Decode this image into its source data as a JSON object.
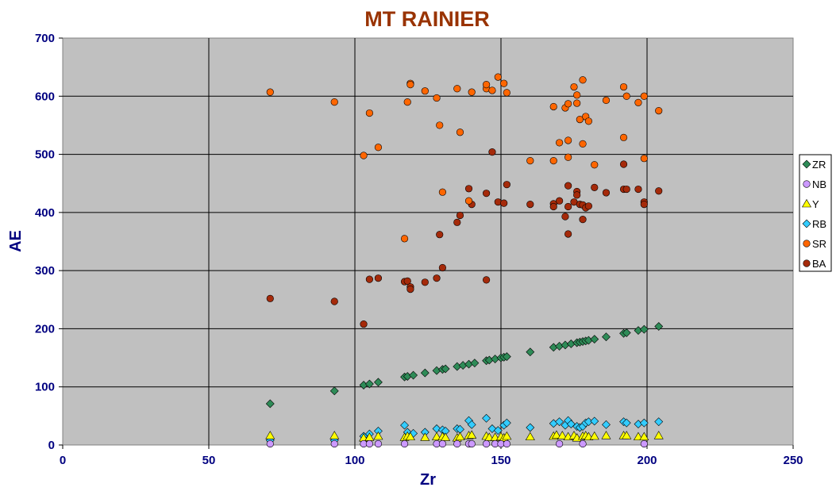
{
  "chart_data": {
    "type": "scatter",
    "title": "MT RAINIER",
    "xlabel": "Zr",
    "ylabel": "AE",
    "xlim": [
      0,
      250
    ],
    "ylim": [
      0,
      700
    ],
    "x_ticks": [
      "0",
      "50",
      "100",
      "150",
      "200",
      "250"
    ],
    "y_ticks": [
      "0",
      "100",
      "200",
      "300",
      "400",
      "500",
      "600",
      "700"
    ],
    "grid": true,
    "legend_position": "right",
    "colors": {
      "title": "#993300",
      "axis_text": "#000080",
      "plot_background": "#c0c0c0",
      "gridline": "#000000"
    },
    "series": [
      {
        "name": "ZR",
        "marker": "diamond",
        "color": "#2e8b57",
        "points": [
          [
            71,
            71
          ],
          [
            93,
            93
          ],
          [
            103,
            103
          ],
          [
            105,
            105
          ],
          [
            108,
            108
          ],
          [
            117,
            117
          ],
          [
            118,
            118
          ],
          [
            120,
            120
          ],
          [
            124,
            124
          ],
          [
            128,
            128
          ],
          [
            130,
            130
          ],
          [
            131,
            131
          ],
          [
            135,
            135
          ],
          [
            137,
            137
          ],
          [
            139,
            139
          ],
          [
            141,
            141
          ],
          [
            145,
            145
          ],
          [
            146,
            146
          ],
          [
            148,
            148
          ],
          [
            150,
            150
          ],
          [
            151,
            151
          ],
          [
            152,
            152
          ],
          [
            160,
            160
          ],
          [
            168,
            168
          ],
          [
            170,
            170
          ],
          [
            172,
            172
          ],
          [
            174,
            174
          ],
          [
            176,
            176
          ],
          [
            177,
            177
          ],
          [
            178,
            178
          ],
          [
            179,
            179
          ],
          [
            180,
            180
          ],
          [
            182,
            182
          ],
          [
            186,
            186
          ],
          [
            192,
            192
          ],
          [
            193,
            193
          ],
          [
            197,
            197
          ],
          [
            199,
            199
          ],
          [
            204,
            204
          ]
        ]
      },
      {
        "name": "NB",
        "marker": "circle",
        "color": "#cc99ff",
        "points": [
          [
            71,
            2
          ],
          [
            93,
            2
          ],
          [
            103,
            2
          ],
          [
            105,
            2
          ],
          [
            108,
            2
          ],
          [
            117,
            2
          ],
          [
            128,
            2
          ],
          [
            130,
            2
          ],
          [
            135,
            2
          ],
          [
            139,
            2
          ],
          [
            140,
            2
          ],
          [
            145,
            2
          ],
          [
            148,
            2
          ],
          [
            150,
            2
          ],
          [
            152,
            2
          ],
          [
            170,
            2
          ],
          [
            178,
            2
          ],
          [
            199,
            2
          ]
        ]
      },
      {
        "name": "Y",
        "marker": "triangle",
        "color": "#ffff00",
        "points": [
          [
            71,
            16
          ],
          [
            93,
            16
          ],
          [
            103,
            12
          ],
          [
            105,
            13
          ],
          [
            108,
            15
          ],
          [
            117,
            13
          ],
          [
            118,
            15
          ],
          [
            119,
            14
          ],
          [
            124,
            13
          ],
          [
            128,
            14
          ],
          [
            130,
            14
          ],
          [
            131,
            13
          ],
          [
            135,
            12
          ],
          [
            136,
            14
          ],
          [
            139,
            16
          ],
          [
            140,
            17
          ],
          [
            145,
            15
          ],
          [
            146,
            13
          ],
          [
            148,
            13
          ],
          [
            150,
            14
          ],
          [
            151,
            12
          ],
          [
            152,
            15
          ],
          [
            160,
            14
          ],
          [
            168,
            15
          ],
          [
            169,
            17
          ],
          [
            171,
            16
          ],
          [
            173,
            14
          ],
          [
            175,
            16
          ],
          [
            176,
            12
          ],
          [
            178,
            15
          ],
          [
            179,
            16
          ],
          [
            180,
            14
          ],
          [
            182,
            15
          ],
          [
            186,
            16
          ],
          [
            192,
            16
          ],
          [
            193,
            16
          ],
          [
            197,
            14
          ],
          [
            199,
            14
          ],
          [
            204,
            16
          ]
        ]
      },
      {
        "name": "RB",
        "marker": "diamond",
        "color": "#33ccff",
        "points": [
          [
            71,
            8
          ],
          [
            93,
            8
          ],
          [
            103,
            15
          ],
          [
            105,
            19
          ],
          [
            108,
            24
          ],
          [
            117,
            34
          ],
          [
            118,
            22
          ],
          [
            120,
            20
          ],
          [
            124,
            22
          ],
          [
            128,
            28
          ],
          [
            130,
            26
          ],
          [
            131,
            24
          ],
          [
            135,
            28
          ],
          [
            136,
            27
          ],
          [
            139,
            42
          ],
          [
            140,
            35
          ],
          [
            145,
            46
          ],
          [
            147,
            28
          ],
          [
            149,
            25
          ],
          [
            151,
            34
          ],
          [
            152,
            38
          ],
          [
            160,
            30
          ],
          [
            168,
            37
          ],
          [
            170,
            40
          ],
          [
            172,
            34
          ],
          [
            173,
            42
          ],
          [
            174,
            36
          ],
          [
            176,
            32
          ],
          [
            177,
            30
          ],
          [
            178,
            32
          ],
          [
            179,
            38
          ],
          [
            180,
            40
          ],
          [
            182,
            41
          ],
          [
            186,
            35
          ],
          [
            192,
            40
          ],
          [
            193,
            38
          ],
          [
            197,
            36
          ],
          [
            199,
            38
          ],
          [
            204,
            40
          ]
        ]
      },
      {
        "name": "SR",
        "marker": "circle",
        "color": "#ff6600",
        "points": [
          [
            71,
            607
          ],
          [
            93,
            590
          ],
          [
            103,
            498
          ],
          [
            105,
            571
          ],
          [
            108,
            512
          ],
          [
            117,
            355
          ],
          [
            118,
            590
          ],
          [
            119,
            622
          ],
          [
            119,
            620
          ],
          [
            124,
            609
          ],
          [
            128,
            597
          ],
          [
            129,
            550
          ],
          [
            130,
            435
          ],
          [
            135,
            613
          ],
          [
            136,
            538
          ],
          [
            139,
            420
          ],
          [
            140,
            607
          ],
          [
            145,
            613
          ],
          [
            145,
            620
          ],
          [
            147,
            610
          ],
          [
            149,
            633
          ],
          [
            151,
            622
          ],
          [
            152,
            606
          ],
          [
            160,
            489
          ],
          [
            168,
            582
          ],
          [
            168,
            489
          ],
          [
            170,
            520
          ],
          [
            172,
            580
          ],
          [
            173,
            587
          ],
          [
            173,
            524
          ],
          [
            173,
            495
          ],
          [
            175,
            616
          ],
          [
            176,
            602
          ],
          [
            176,
            588
          ],
          [
            177,
            560
          ],
          [
            178,
            628
          ],
          [
            178,
            518
          ],
          [
            179,
            565
          ],
          [
            180,
            557
          ],
          [
            182,
            482
          ],
          [
            186,
            593
          ],
          [
            192,
            616
          ],
          [
            192,
            529
          ],
          [
            193,
            600
          ],
          [
            197,
            589
          ],
          [
            199,
            600
          ],
          [
            199,
            493
          ],
          [
            204,
            575
          ]
        ]
      },
      {
        "name": "BA",
        "marker": "circle",
        "color": "#a52a0a",
        "points": [
          [
            71,
            252
          ],
          [
            93,
            247
          ],
          [
            103,
            208
          ],
          [
            105,
            285
          ],
          [
            108,
            287
          ],
          [
            117,
            281
          ],
          [
            118,
            282
          ],
          [
            119,
            272
          ],
          [
            119,
            268
          ],
          [
            124,
            280
          ],
          [
            128,
            287
          ],
          [
            129,
            362
          ],
          [
            130,
            305
          ],
          [
            135,
            383
          ],
          [
            136,
            395
          ],
          [
            139,
            441
          ],
          [
            140,
            414
          ],
          [
            145,
            433
          ],
          [
            145,
            284
          ],
          [
            147,
            504
          ],
          [
            149,
            418
          ],
          [
            151,
            416
          ],
          [
            152,
            448
          ],
          [
            160,
            414
          ],
          [
            168,
            415
          ],
          [
            168,
            410
          ],
          [
            170,
            420
          ],
          [
            172,
            393
          ],
          [
            173,
            446
          ],
          [
            173,
            410
          ],
          [
            173,
            363
          ],
          [
            175,
            418
          ],
          [
            176,
            436
          ],
          [
            176,
            430
          ],
          [
            177,
            414
          ],
          [
            178,
            413
          ],
          [
            178,
            388
          ],
          [
            179,
            408
          ],
          [
            180,
            411
          ],
          [
            182,
            443
          ],
          [
            186,
            434
          ],
          [
            192,
            483
          ],
          [
            192,
            440
          ],
          [
            193,
            440
          ],
          [
            197,
            440
          ],
          [
            199,
            418
          ],
          [
            199,
            414
          ],
          [
            204,
            437
          ]
        ]
      }
    ]
  }
}
